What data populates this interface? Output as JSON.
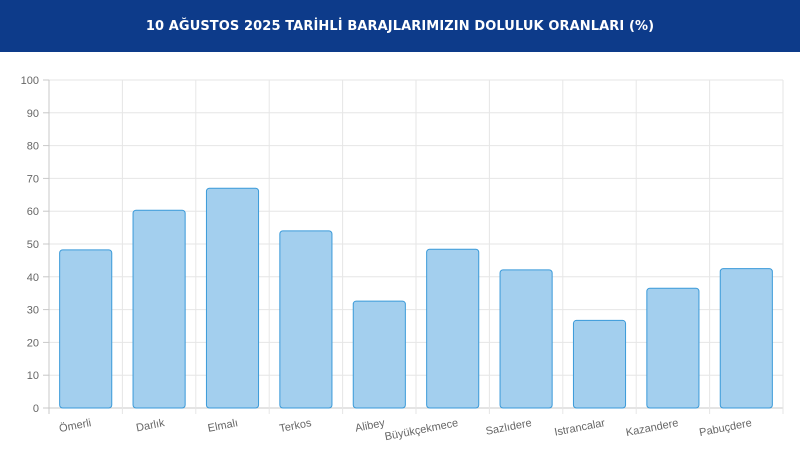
{
  "header": {
    "title": "10 AĞUSTOS 2025 TARİHLİ BARAJLARIMIZIN DOLULUK ORANLARI (%)"
  },
  "colors": {
    "header_bg": "#0d3b8a",
    "bar_fill": "#a3cfee",
    "bar_stroke": "#3a9ad9",
    "grid": "#e6e6e6"
  },
  "chart_data": {
    "type": "bar",
    "title": "10 AĞUSTOS 2025 TARİHLİ BARAJLARIMIZIN DOLULUK ORANLARI (%)",
    "categories": [
      "Ömerli",
      "Darlık",
      "Elmalı",
      "Terkos",
      "Alibey",
      "Büyükçekmece",
      "Sazlıdere",
      "Istrancalar",
      "Kazandere",
      "Pabuçdere"
    ],
    "values": [
      48.2,
      60.3,
      67.0,
      54.0,
      32.6,
      48.4,
      42.1,
      26.7,
      36.5,
      42.5
    ],
    "ylim": [
      0,
      100
    ],
    "yticks": [
      0,
      10,
      20,
      30,
      40,
      50,
      60,
      70,
      80,
      90,
      100
    ],
    "grid": true,
    "legend": "none"
  }
}
